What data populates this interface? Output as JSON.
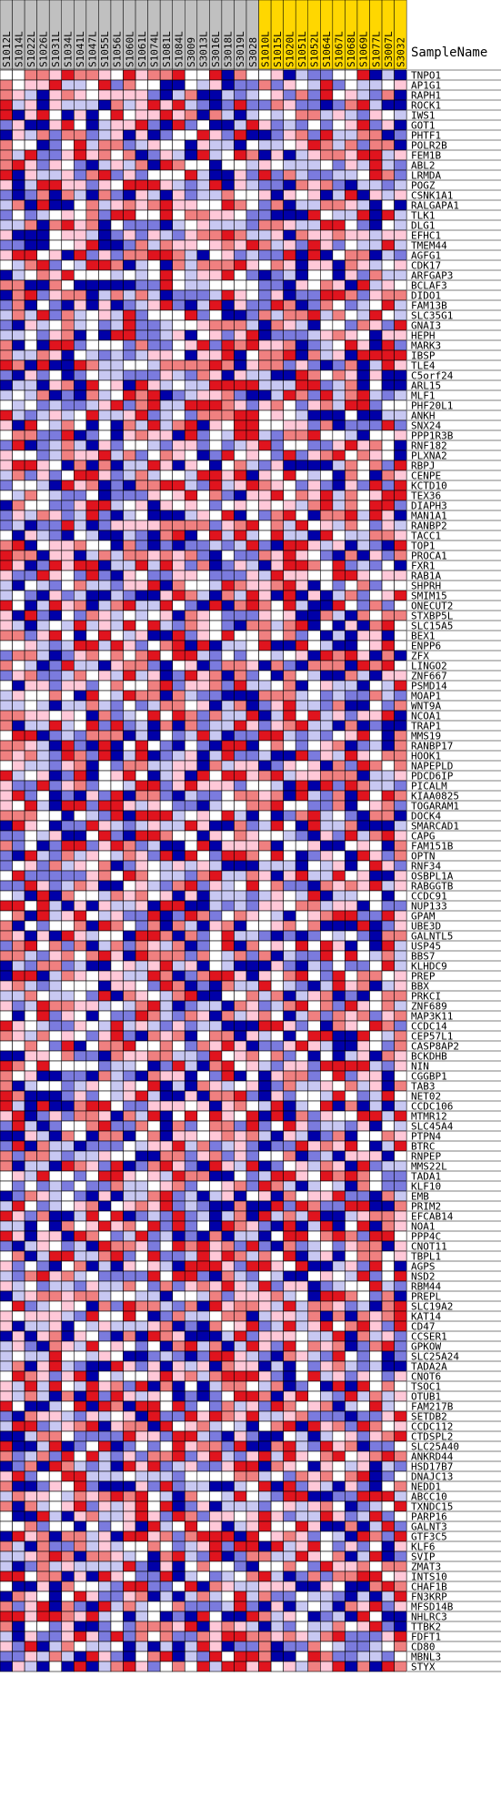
{
  "header_label": "SampleName",
  "chart_data": {
    "type": "heatmap",
    "columns": [
      "S1012L",
      "S1014L",
      "S1022L",
      "S1026L",
      "S1031L",
      "S1034L",
      "S1041L",
      "S1047L",
      "S1055L",
      "S1056L",
      "S1060L",
      "S1061L",
      "S1074L",
      "S1081L",
      "S1084L",
      "S3009",
      "S3013L",
      "S3016L",
      "S3018L",
      "S3019L",
      "S3028",
      "S1010L",
      "S1015L",
      "S1020L",
      "S1051L",
      "S1052L",
      "S1064L",
      "S1067L",
      "S1068L",
      "S1069L",
      "S1077L",
      "S3007L",
      "S3032"
    ],
    "groups": [
      "A",
      "A",
      "A",
      "A",
      "A",
      "A",
      "A",
      "A",
      "A",
      "A",
      "A",
      "A",
      "A",
      "A",
      "A",
      "A",
      "A",
      "A",
      "A",
      "A",
      "A",
      "B",
      "B",
      "B",
      "B",
      "B",
      "B",
      "B",
      "B",
      "B",
      "B",
      "B",
      "B"
    ],
    "group_colors": {
      "A": "#c0c0c0",
      "B": "#ffd700"
    },
    "rows": [
      "TNPO1",
      "AP1G1",
      "RAPH1",
      "ROCK1",
      "IWS1",
      "GOT1",
      "PHTF1",
      "POLR2B",
      "FEM1B",
      "ABL2",
      "LRMDA",
      "POGZ",
      "CSNK1A1",
      "RALGAPA1",
      "TLK1",
      "DLG1",
      "EFHC1",
      "TMEM44",
      "AGFG1",
      "CDK17",
      "ARFGAP3",
      "BCLAF3",
      "DIDO1",
      "FAM13B",
      "SLC35G1",
      "GNAI3",
      "HEPH",
      "MARK3",
      "IBSP",
      "TLE4",
      "C5orf24",
      "ARL15",
      "MLF1",
      "PHF20L1",
      "ANKH",
      "SNX24",
      "PPP1R3B",
      "RNF182",
      "PLXNA2",
      "RBPJ",
      "CENPE",
      "KCTD10",
      "TEX36",
      "DIAPH3",
      "MAN1A1",
      "RANBP2",
      "TACC1",
      "TOP1",
      "PROCA1",
      "FXR1",
      "RAB1A",
      "SHPRH",
      "SMIM15",
      "ONECUT2",
      "STXBP5L",
      "SLC15A5",
      "BEX1",
      "ENPP6",
      "ZFX",
      "LINGO2",
      "ZNF667",
      "PSMD14",
      "MOAP1",
      "WNT9A",
      "NCOA1",
      "TRAP1",
      "MMS19",
      "RANBP17",
      "HOOK1",
      "NAPEPLD",
      "PDCD6IP",
      "PICALM",
      "KIAA0825",
      "TOGARAM1",
      "DOCK4",
      "SMARCAD1",
      "CAPG",
      "FAM151B",
      "OPTN",
      "RNF34",
      "OSBPL1A",
      "RABGGTB",
      "CCDC91",
      "NUP133",
      "GPAM",
      "UBE3D",
      "GALNTL5",
      "USP45",
      "BBS7",
      "KLHDC9",
      "PREP",
      "BBX",
      "PRKCI",
      "ZNF689",
      "MAP3K11",
      "CCDC14",
      "CEP57L1",
      "CASP8AP2",
      "BCKDHB",
      "NIN",
      "CGGBP1",
      "TAB3",
      "NET02",
      "CCDC106",
      "MTMR12",
      "SLC45A4",
      "PTPN4",
      "BTRC",
      "RNPEP",
      "MMS22L",
      "TADA1",
      "KLF10",
      "EMB",
      "PRIM2",
      "EFCAB14",
      "NOA1",
      "PPP4C",
      "CNOT11",
      "TBPL1",
      "AGPS",
      "NSD2",
      "RBM44",
      "PREPL",
      "SLC19A2",
      "KAT14",
      "CD47",
      "CCSER1",
      "GPKOW",
      "SLC25A24",
      "TADA2A",
      "CNOT6",
      "TSOC1",
      "OTUB1",
      "FAM217B",
      "SETDB2",
      "CCDC112",
      "CTDSPL2",
      "SLC25A40",
      "ANKRD44",
      "HSD17B7",
      "DNAJC13",
      "NEDD1",
      "ABCC10",
      "TXNDC15",
      "PARP16",
      "GALNT3",
      "GTF3C5",
      "KLF6",
      "SVIP",
      "ZMAT3",
      "INTS10",
      "CHAF1B",
      "FN3KRP",
      "MFSD14B",
      "NHLRC3",
      "TTBK2",
      "FDFT1",
      "CD80",
      "MBNL3",
      "STYX"
    ],
    "value_range": [
      -3,
      3
    ],
    "color_scale": [
      "#0000a8",
      "#7b7bde",
      "#c8c8f2",
      "#ffffff",
      "#ffc8d8",
      "#f08080",
      "#e0141e"
    ],
    "seed": 20240617
  }
}
